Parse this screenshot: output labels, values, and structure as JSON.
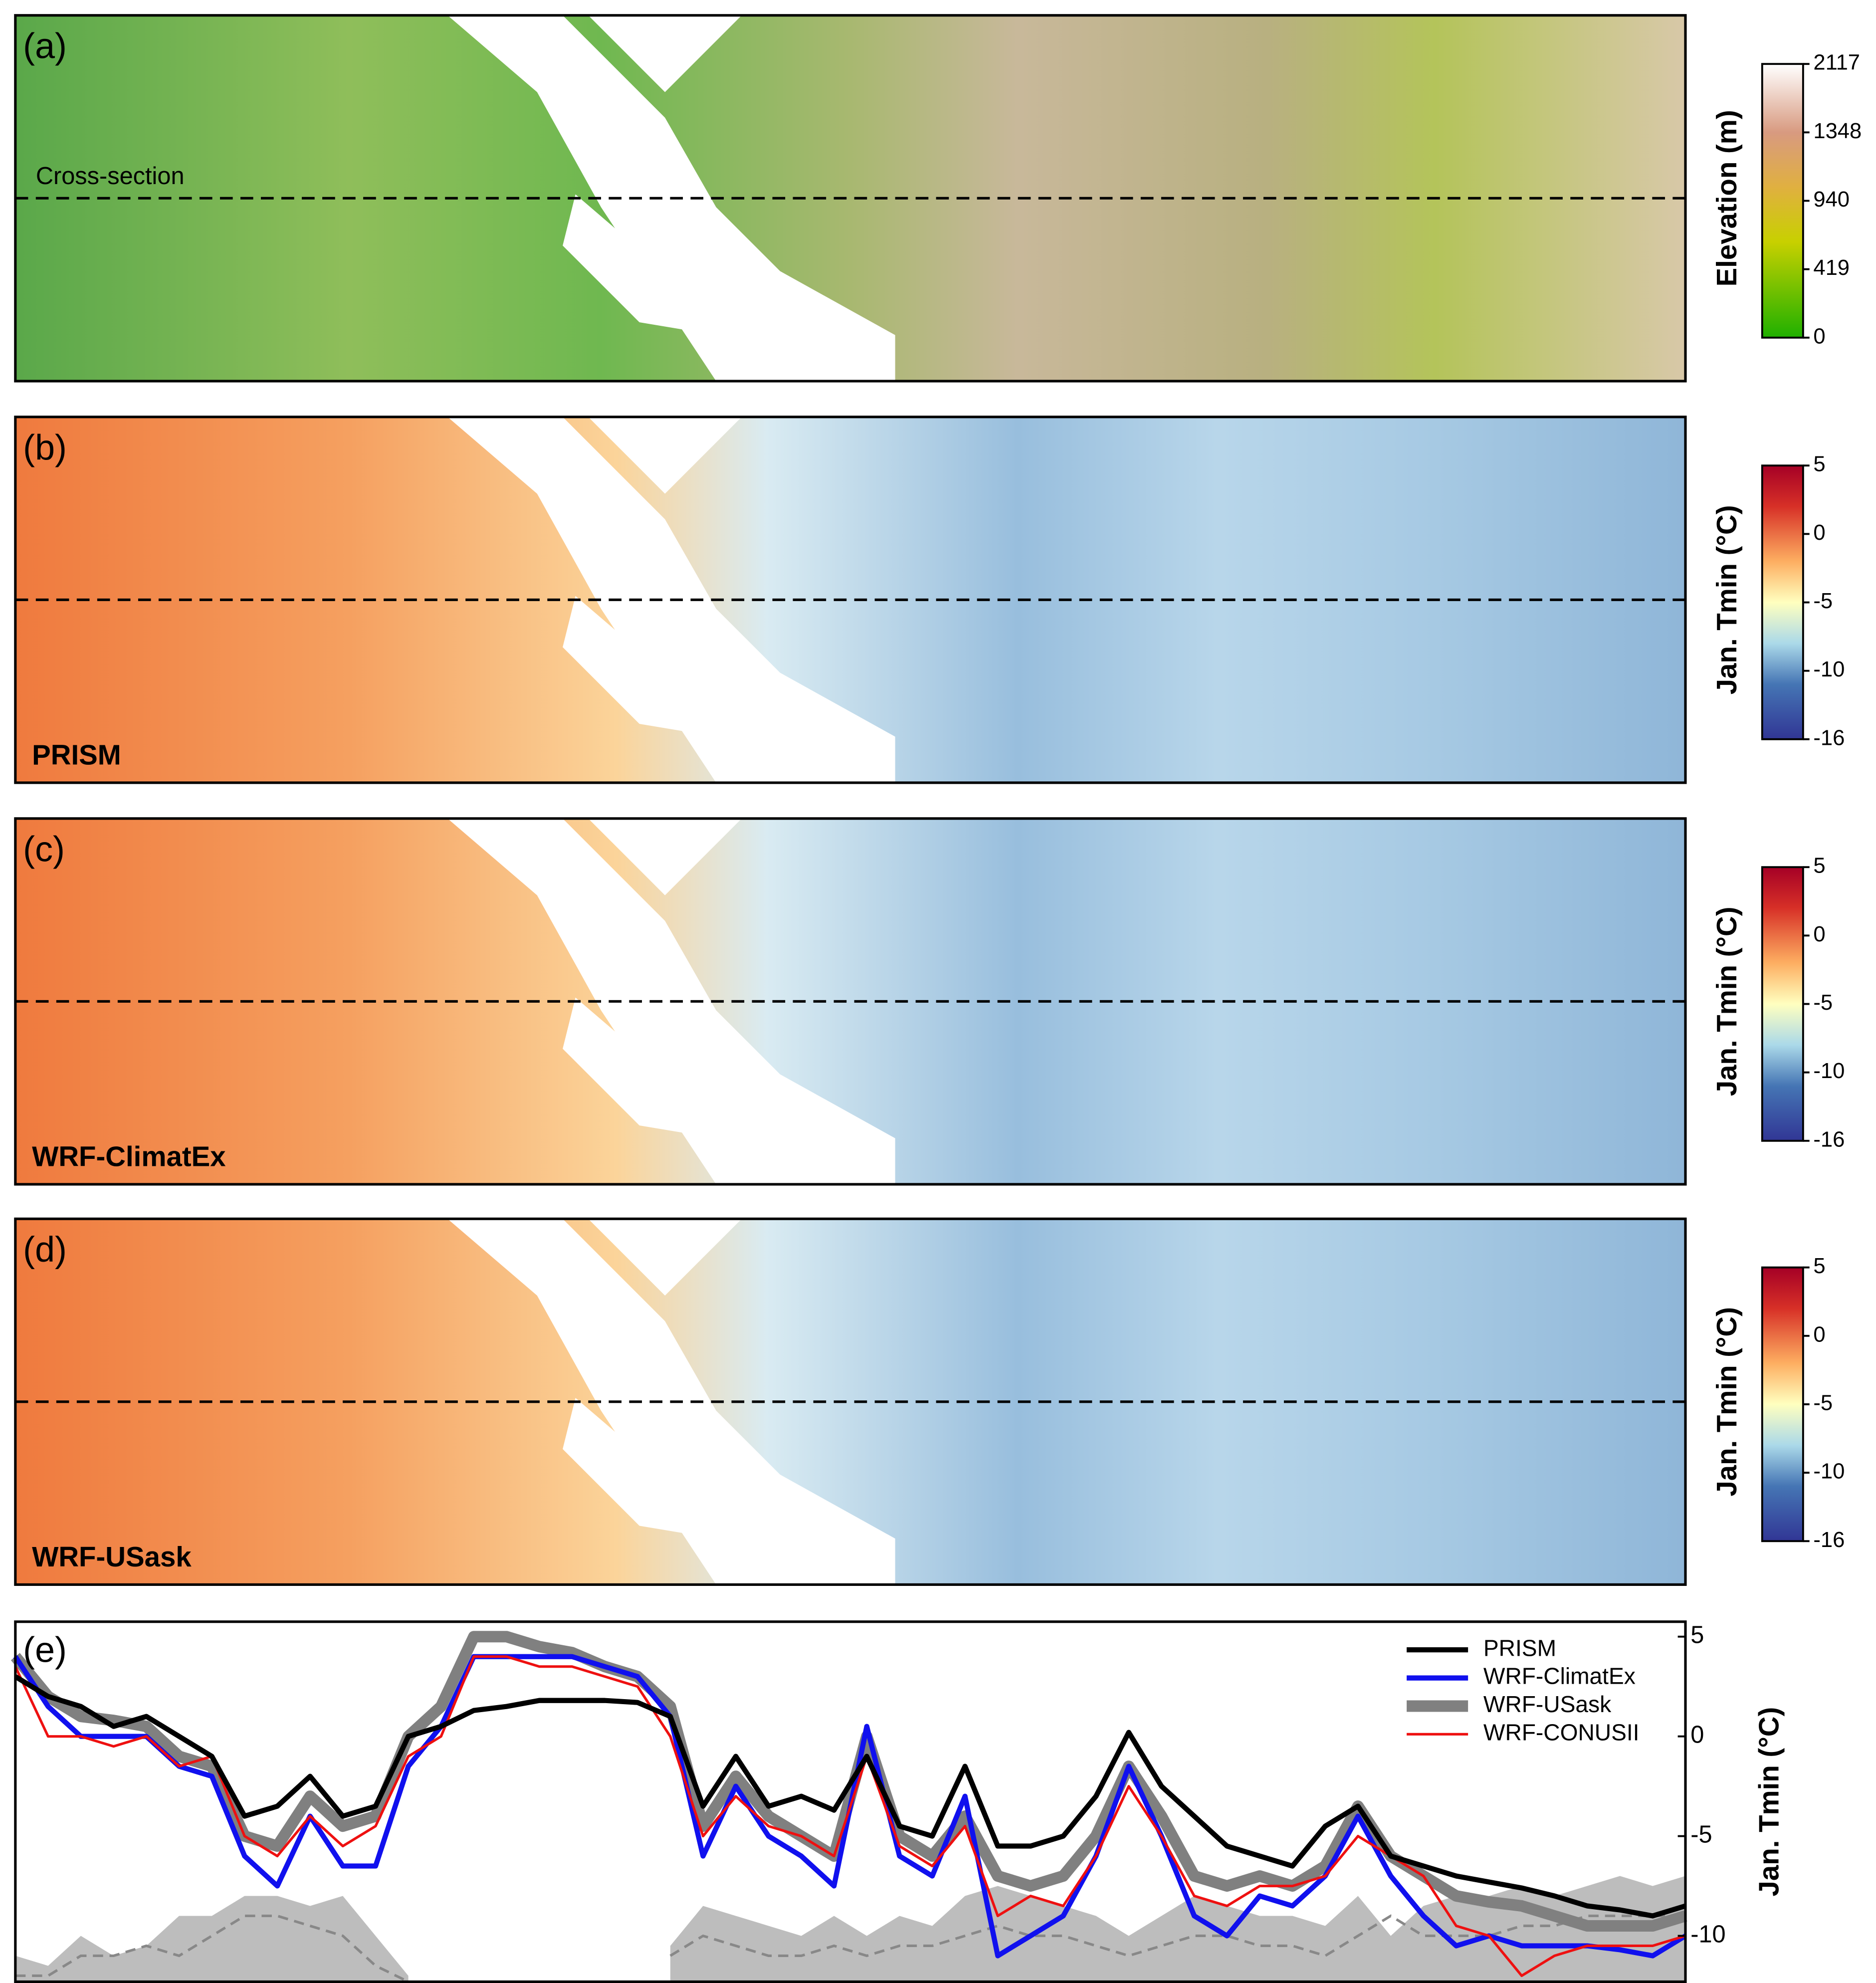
{
  "panels": [
    {
      "label": "(a)",
      "annotation": "Cross-section",
      "colorbar": {
        "title": "Elevation (m)",
        "ticks": [
          0,
          419,
          940,
          1348,
          2117
        ]
      }
    },
    {
      "label": "(b)",
      "name": "PRISM",
      "colorbar": {
        "title": "Jan. Tmin (°C)",
        "ticks": [
          -16,
          -10,
          -5,
          0,
          5
        ]
      }
    },
    {
      "label": "(c)",
      "name": "WRF-ClimatEx",
      "colorbar": {
        "title": "Jan. Tmin (°C)",
        "ticks": [
          -16,
          -10,
          -5,
          0,
          5
        ]
      }
    },
    {
      "label": "(d)",
      "name": "WRF-USask",
      "colorbar": {
        "title": "Jan. Tmin (°C)",
        "ticks": [
          -16,
          -10,
          -5,
          0,
          5
        ]
      }
    }
  ],
  "chart_data": {
    "type": "line",
    "label": "(e)",
    "ylabel": "Jan. Tmin (°C)",
    "ylim": [
      -12.3,
      5.75
    ],
    "yticks": [
      -10,
      -5,
      0,
      5
    ],
    "legend": "upper right",
    "series": [
      {
        "name": "PRISM",
        "color": "#000000",
        "width": 4,
        "values": [
          3,
          2,
          1.5,
          0.5,
          1,
          0,
          -1,
          -4,
          -3.5,
          -2,
          -4,
          -3.5,
          0,
          0.5,
          1.3,
          1.5,
          1.8,
          1.8,
          1.8,
          1.7,
          1,
          -3.5,
          -1,
          -3.5,
          -3,
          -3.7,
          -1,
          -4.5,
          -5,
          -1.5,
          -5.5,
          -5.5,
          -5,
          -3,
          0.2,
          -2.5,
          -4,
          -5.5,
          -6,
          -6.5,
          -4.5,
          -3.5,
          -6,
          -6.5,
          -7,
          -7.3,
          -7.6,
          -8,
          -8.5,
          -8.7,
          -9,
          -8.5
        ]
      },
      {
        "name": "WRF-ClimatEx",
        "color": "#1010ee",
        "width": 4,
        "values": [
          4,
          1.5,
          0,
          0,
          0,
          -1.5,
          -2,
          -6,
          -7.5,
          -4,
          -6.5,
          -6.5,
          -1.5,
          0.5,
          4,
          4,
          4,
          4,
          3.5,
          3,
          1,
          -6,
          -2.5,
          -5,
          -6,
          -7.5,
          0.5,
          -6,
          -7,
          -3,
          -11,
          -10,
          -9,
          -6,
          -1.5,
          -5,
          -9,
          -10,
          -8,
          -8.5,
          -7,
          -4,
          -7,
          -9,
          -10.5,
          -10,
          -10.5,
          -10.5,
          -10.5,
          -10.7,
          -11,
          -10
        ]
      },
      {
        "name": "WRF-USask",
        "color": "#808080",
        "width": 9,
        "values": [
          4,
          2,
          1,
          0.8,
          0.5,
          -1,
          -1.5,
          -5,
          -5.5,
          -3,
          -4.5,
          -4,
          0,
          1.5,
          5,
          5,
          4.5,
          4.2,
          3.5,
          3,
          1.5,
          -4.5,
          -2,
          -4,
          -5,
          -6,
          0,
          -5,
          -6,
          -4,
          -7,
          -7.5,
          -7,
          -5,
          -1.5,
          -4,
          -7,
          -7.5,
          -7,
          -7.5,
          -6.5,
          -3.5,
          -6,
          -7,
          -8,
          -8.3,
          -8.5,
          -9,
          -9.5,
          -9.5,
          -9.5,
          -9
        ]
      },
      {
        "name": "WRF-CONUSII",
        "color": "#ee1010",
        "width": 2,
        "values": [
          3.5,
          0,
          0,
          -0.5,
          0,
          -1.5,
          -1,
          -5,
          -6,
          -4,
          -5.5,
          -4.5,
          -1,
          0,
          4,
          4,
          3.5,
          3.5,
          3,
          2.5,
          0,
          -5,
          -3,
          -4.5,
          -5,
          -6,
          -1,
          -5.5,
          -6.5,
          -4.5,
          -9,
          -8,
          -8.5,
          -6,
          -2.5,
          -5,
          -8,
          -8.5,
          -7.5,
          -7.5,
          -7,
          -5,
          -6,
          -7,
          -9.5,
          -10,
          -12,
          -11,
          -10.5,
          -10.5,
          -10.5,
          -10
        ]
      }
    ],
    "elevation_profile": {
      "color": "#bdbdbd",
      "values": [
        -11,
        -11.5,
        -10,
        -11,
        -10.5,
        -9,
        -9,
        -8,
        -8,
        -8.5,
        -8,
        -10,
        -12,
        null,
        null,
        null,
        null,
        null,
        null,
        null,
        -10.5,
        -8.5,
        -9,
        -9.5,
        -10,
        -9,
        -10,
        -9,
        -9.5,
        -8,
        -7.5,
        -8,
        -8.5,
        -9,
        -10,
        -9,
        -8,
        -8.5,
        -9,
        -9,
        -9.5,
        -8,
        -10,
        -8.5,
        -8,
        -8,
        -7.5,
        -8,
        -7.5,
        -7,
        -7.5,
        -7
      ]
    },
    "dashed_profile": {
      "color": "#888888",
      "values": [
        -12,
        -12,
        -11,
        -11,
        -10.5,
        -11,
        -10,
        -9,
        -9,
        -9.5,
        -10,
        -11.5,
        -12.3,
        null,
        null,
        null,
        null,
        null,
        null,
        null,
        -11,
        -10,
        -10.5,
        -11,
        -11,
        -10.5,
        -11,
        -10.5,
        -10.5,
        -10,
        -9.5,
        -10,
        -10,
        -10.5,
        -11,
        -10.5,
        -10,
        -10,
        -10.5,
        -10.5,
        -11,
        -10,
        -9,
        -10,
        -10,
        -10,
        -9.5,
        -9.5,
        -9,
        -9,
        -9,
        -9
      ]
    }
  }
}
